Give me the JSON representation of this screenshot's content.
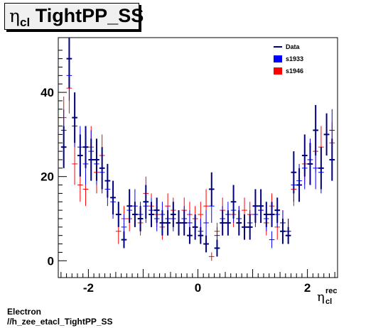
{
  "title": {
    "symbol": "η",
    "subscript": "cl",
    "text": "TightPP_SS"
  },
  "footer": {
    "line1": "Electron",
    "line2": "//h_zee_etacl_TightPP_SS"
  },
  "colors": {
    "data": "#000080",
    "s1933": "#0000ff",
    "s1946": "#ff0000"
  },
  "chart_data": {
    "type": "scatter",
    "xlabel": {
      "symbol": "η",
      "superscript": "rec",
      "subscript": "cl"
    },
    "xlim": [
      -2.55,
      2.55
    ],
    "ylim": [
      -4,
      53
    ],
    "xticks": [
      -2,
      0,
      2
    ],
    "yticks": [
      0,
      20,
      40
    ],
    "grid": false,
    "legend": {
      "position": "top-right",
      "entries": [
        "Data",
        "s1933",
        "s1946"
      ]
    },
    "bin_width": 0.1,
    "series": [
      {
        "name": "Data",
        "style": "errorbar-thick",
        "x": [
          -2.45,
          -2.35,
          -2.25,
          -2.15,
          -2.05,
          -1.95,
          -1.85,
          -1.75,
          -1.65,
          -1.55,
          -1.45,
          -1.35,
          -1.25,
          -1.15,
          -1.05,
          -0.95,
          -0.85,
          -0.75,
          -0.65,
          -0.55,
          -0.45,
          -0.35,
          -0.25,
          -0.15,
          -0.05,
          0.05,
          0.15,
          0.25,
          0.35,
          0.45,
          0.55,
          0.65,
          0.75,
          0.85,
          0.95,
          1.05,
          1.15,
          1.25,
          1.35,
          1.45,
          1.55,
          1.65,
          1.75,
          1.85,
          1.95,
          2.05,
          2.15,
          2.25,
          2.35,
          2.45
        ],
        "y": [
          27,
          48,
          34,
          25,
          27,
          24,
          24,
          22,
          19,
          15,
          11,
          5,
          13,
          11,
          10,
          14,
          11,
          12,
          9,
          9,
          11,
          9,
          9,
          6,
          8,
          6,
          4,
          17,
          3,
          9,
          9,
          14,
          9,
          8,
          8,
          13,
          13,
          11,
          11,
          12,
          7,
          6,
          21,
          18,
          25,
          23,
          31,
          22,
          30,
          24
        ],
        "err": [
          5,
          7,
          6,
          5,
          5,
          5,
          5,
          5,
          4,
          4,
          3,
          2,
          4,
          3,
          3,
          4,
          3,
          3,
          3,
          3,
          3,
          3,
          3,
          2,
          3,
          2,
          2,
          4,
          2,
          3,
          3,
          4,
          3,
          3,
          3,
          4,
          4,
          3,
          3,
          3,
          3,
          2,
          5,
          4,
          5,
          5,
          6,
          5,
          5,
          5
        ]
      },
      {
        "name": "s1933",
        "style": "errorbar-thin",
        "x": [
          -2.45,
          -2.35,
          -2.25,
          -2.15,
          -2.05,
          -1.95,
          -1.85,
          -1.75,
          -1.65,
          -1.55,
          -1.45,
          -1.35,
          -1.25,
          -1.15,
          -1.05,
          -0.95,
          -0.85,
          -0.75,
          -0.65,
          -0.55,
          -0.45,
          -0.35,
          -0.25,
          -0.15,
          -0.05,
          0.05,
          0.15,
          0.25,
          0.35,
          0.45,
          0.55,
          0.65,
          0.75,
          0.85,
          0.95,
          1.05,
          1.15,
          1.25,
          1.35,
          1.45,
          1.55,
          1.65,
          1.75,
          1.85,
          1.95,
          2.05,
          2.15,
          2.25,
          2.35,
          2.45
        ],
        "y": [
          31,
          44,
          32,
          27,
          23,
          26,
          23,
          21,
          17,
          14,
          11,
          8,
          12,
          13,
          11,
          13,
          12,
          10,
          11,
          10,
          10,
          9,
          10,
          9,
          8,
          7,
          9,
          13,
          6,
          10,
          11,
          12,
          10,
          8,
          9,
          11,
          12,
          10,
          5,
          11,
          9,
          7,
          18,
          19,
          22,
          24,
          22,
          21,
          30,
          31
        ],
        "err": [
          5,
          6,
          5,
          5,
          5,
          5,
          5,
          5,
          4,
          4,
          3,
          3,
          3,
          4,
          3,
          4,
          3,
          3,
          3,
          3,
          3,
          3,
          3,
          3,
          3,
          3,
          3,
          4,
          2,
          3,
          3,
          3,
          3,
          3,
          3,
          3,
          3,
          3,
          2,
          3,
          3,
          3,
          4,
          4,
          5,
          5,
          5,
          5,
          5,
          5
        ]
      },
      {
        "name": "s1946",
        "style": "errorbar-thin",
        "x": [
          -2.45,
          -2.35,
          -2.25,
          -2.15,
          -2.05,
          -1.95,
          -1.85,
          -1.75,
          -1.65,
          -1.55,
          -1.45,
          -1.35,
          -1.25,
          -1.15,
          -1.05,
          -0.95,
          -0.85,
          -0.75,
          -0.65,
          -0.55,
          -0.45,
          -0.35,
          -0.25,
          -0.15,
          -0.05,
          0.05,
          0.15,
          0.25,
          0.35,
          0.45,
          0.55,
          0.65,
          0.75,
          0.85,
          0.95,
          1.05,
          1.15,
          1.25,
          1.35,
          1.45,
          1.55,
          1.65,
          1.75,
          1.85,
          1.95,
          2.05,
          2.15,
          2.25,
          2.35,
          2.45
        ],
        "y": [
          34,
          41,
          23,
          18,
          17,
          27,
          21,
          25,
          19,
          15,
          7,
          10,
          10,
          11,
          9,
          16,
          13,
          11,
          8,
          13,
          12,
          9,
          12,
          11,
          10,
          11,
          13,
          1,
          7,
          12,
          9,
          11,
          10,
          12,
          11,
          13,
          12,
          9,
          13,
          8,
          9,
          7,
          17,
          18,
          23,
          24,
          26,
          27,
          30,
          28
        ],
        "err": [
          5,
          6,
          5,
          4,
          4,
          5,
          5,
          5,
          4,
          4,
          3,
          3,
          3,
          3,
          3,
          4,
          3,
          3,
          3,
          3,
          3,
          3,
          3,
          3,
          3,
          3,
          4,
          1,
          2,
          3,
          3,
          3,
          3,
          3,
          3,
          3,
          3,
          3,
          3,
          3,
          3,
          3,
          4,
          4,
          5,
          5,
          5,
          5,
          5,
          5
        ]
      }
    ]
  }
}
